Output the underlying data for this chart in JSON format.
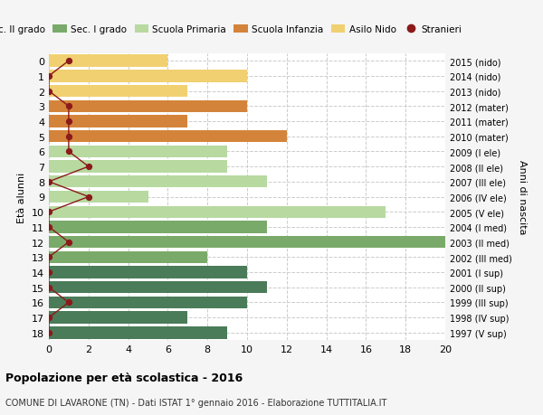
{
  "ages": [
    18,
    17,
    16,
    15,
    14,
    13,
    12,
    11,
    10,
    9,
    8,
    7,
    6,
    5,
    4,
    3,
    2,
    1,
    0
  ],
  "years": [
    "1997 (V sup)",
    "1998 (IV sup)",
    "1999 (III sup)",
    "2000 (II sup)",
    "2001 (I sup)",
    "2002 (III med)",
    "2003 (II med)",
    "2004 (I med)",
    "2005 (V ele)",
    "2006 (IV ele)",
    "2007 (III ele)",
    "2008 (II ele)",
    "2009 (I ele)",
    "2010 (mater)",
    "2011 (mater)",
    "2012 (mater)",
    "2013 (nido)",
    "2014 (nido)",
    "2015 (nido)"
  ],
  "bar_values": [
    9,
    7,
    10,
    11,
    10,
    8,
    20,
    11,
    17,
    5,
    11,
    9,
    9,
    12,
    7,
    10,
    7,
    10,
    6
  ],
  "bar_colors": [
    "#4a7c59",
    "#4a7c59",
    "#4a7c59",
    "#4a7c59",
    "#4a7c59",
    "#7aaa6a",
    "#7aaa6a",
    "#7aaa6a",
    "#b8d9a0",
    "#b8d9a0",
    "#b8d9a0",
    "#b8d9a0",
    "#b8d9a0",
    "#d4843a",
    "#d4843a",
    "#d4843a",
    "#f0d070",
    "#f0d070",
    "#f0d070"
  ],
  "stranieri": [
    0,
    0,
    1,
    0,
    0,
    0,
    1,
    0,
    0,
    2,
    0,
    2,
    1,
    1,
    1,
    1,
    0,
    0,
    1
  ],
  "stranieri_color": "#8b1a1a",
  "title_bold": "Popolazione per età scolastica - 2016",
  "subtitle": "COMUNE DI LAVARONE (TN) - Dati ISTAT 1° gennaio 2016 - Elaborazione TUTTITALIA.IT",
  "ylabel": "Età alunni",
  "right_ylabel": "Anni di nascita",
  "xlim": [
    0,
    20
  ],
  "xticks": [
    0,
    2,
    4,
    6,
    8,
    10,
    12,
    14,
    16,
    18,
    20
  ],
  "legend_labels": [
    "Sec. II grado",
    "Sec. I grado",
    "Scuola Primaria",
    "Scuola Infanzia",
    "Asilo Nido",
    "Stranieri"
  ],
  "legend_colors": [
    "#4a7c59",
    "#7aaa6a",
    "#b8d9a0",
    "#d4843a",
    "#f0d070",
    "#8b1a1a"
  ],
  "bg_color": "#f5f5f5",
  "plot_bg_color": "#ffffff",
  "grid_color": "#cccccc"
}
